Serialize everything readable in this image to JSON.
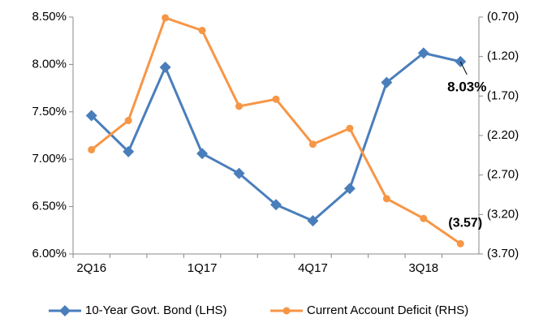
{
  "chart_data": {
    "type": "line",
    "categories": [
      "2Q16",
      null,
      null,
      "1Q17",
      null,
      null,
      "4Q17",
      null,
      null,
      "3Q18",
      null
    ],
    "series": [
      {
        "name": "10-Year Govt. Bond (LHS)",
        "color": "#4a7ebb",
        "marker": "diamond",
        "values": [
          7.46,
          7.08,
          7.97,
          7.06,
          6.85,
          6.52,
          6.35,
          6.69,
          7.81,
          8.12,
          8.03
        ],
        "value_labels": [
          null,
          null,
          null,
          null,
          null,
          null,
          null,
          null,
          null,
          null,
          "8.03%"
        ]
      },
      {
        "name": "Current Account Deficit (RHS)",
        "color": "#f79646",
        "marker": "circle",
        "axis": "y2",
        "values": [
          -2.38,
          -2.01,
          -0.71,
          -0.87,
          -1.83,
          -1.74,
          -2.31,
          -2.11,
          -3.0,
          -3.25,
          -3.57
        ],
        "value_labels": [
          null,
          null,
          null,
          null,
          null,
          null,
          null,
          null,
          null,
          null,
          "(3.57)"
        ]
      }
    ],
    "ylim": [
      6.0,
      8.5
    ],
    "yticks": [
      {
        "value": 6.0,
        "label": "6.00%"
      },
      {
        "value": 6.5,
        "label": "6.50%"
      },
      {
        "value": 7.0,
        "label": "7.00%"
      },
      {
        "value": 7.5,
        "label": "7.50%"
      },
      {
        "value": 8.0,
        "label": "8.00%"
      },
      {
        "value": 8.5,
        "label": "8.50%"
      }
    ],
    "y2lim": [
      -3.7,
      -0.7
    ],
    "y2ticks": [
      {
        "value": -3.7,
        "label": "(3.70)"
      },
      {
        "value": -3.2,
        "label": "(3.20)"
      },
      {
        "value": -2.7,
        "label": "(2.70)"
      },
      {
        "value": -2.2,
        "label": "(2.20)"
      },
      {
        "value": -1.7,
        "label": "(1.70)"
      },
      {
        "value": -1.2,
        "label": "(1.20)"
      },
      {
        "value": -0.7,
        "label": "(0.70)"
      }
    ],
    "grid": false,
    "legend": "bottom"
  }
}
